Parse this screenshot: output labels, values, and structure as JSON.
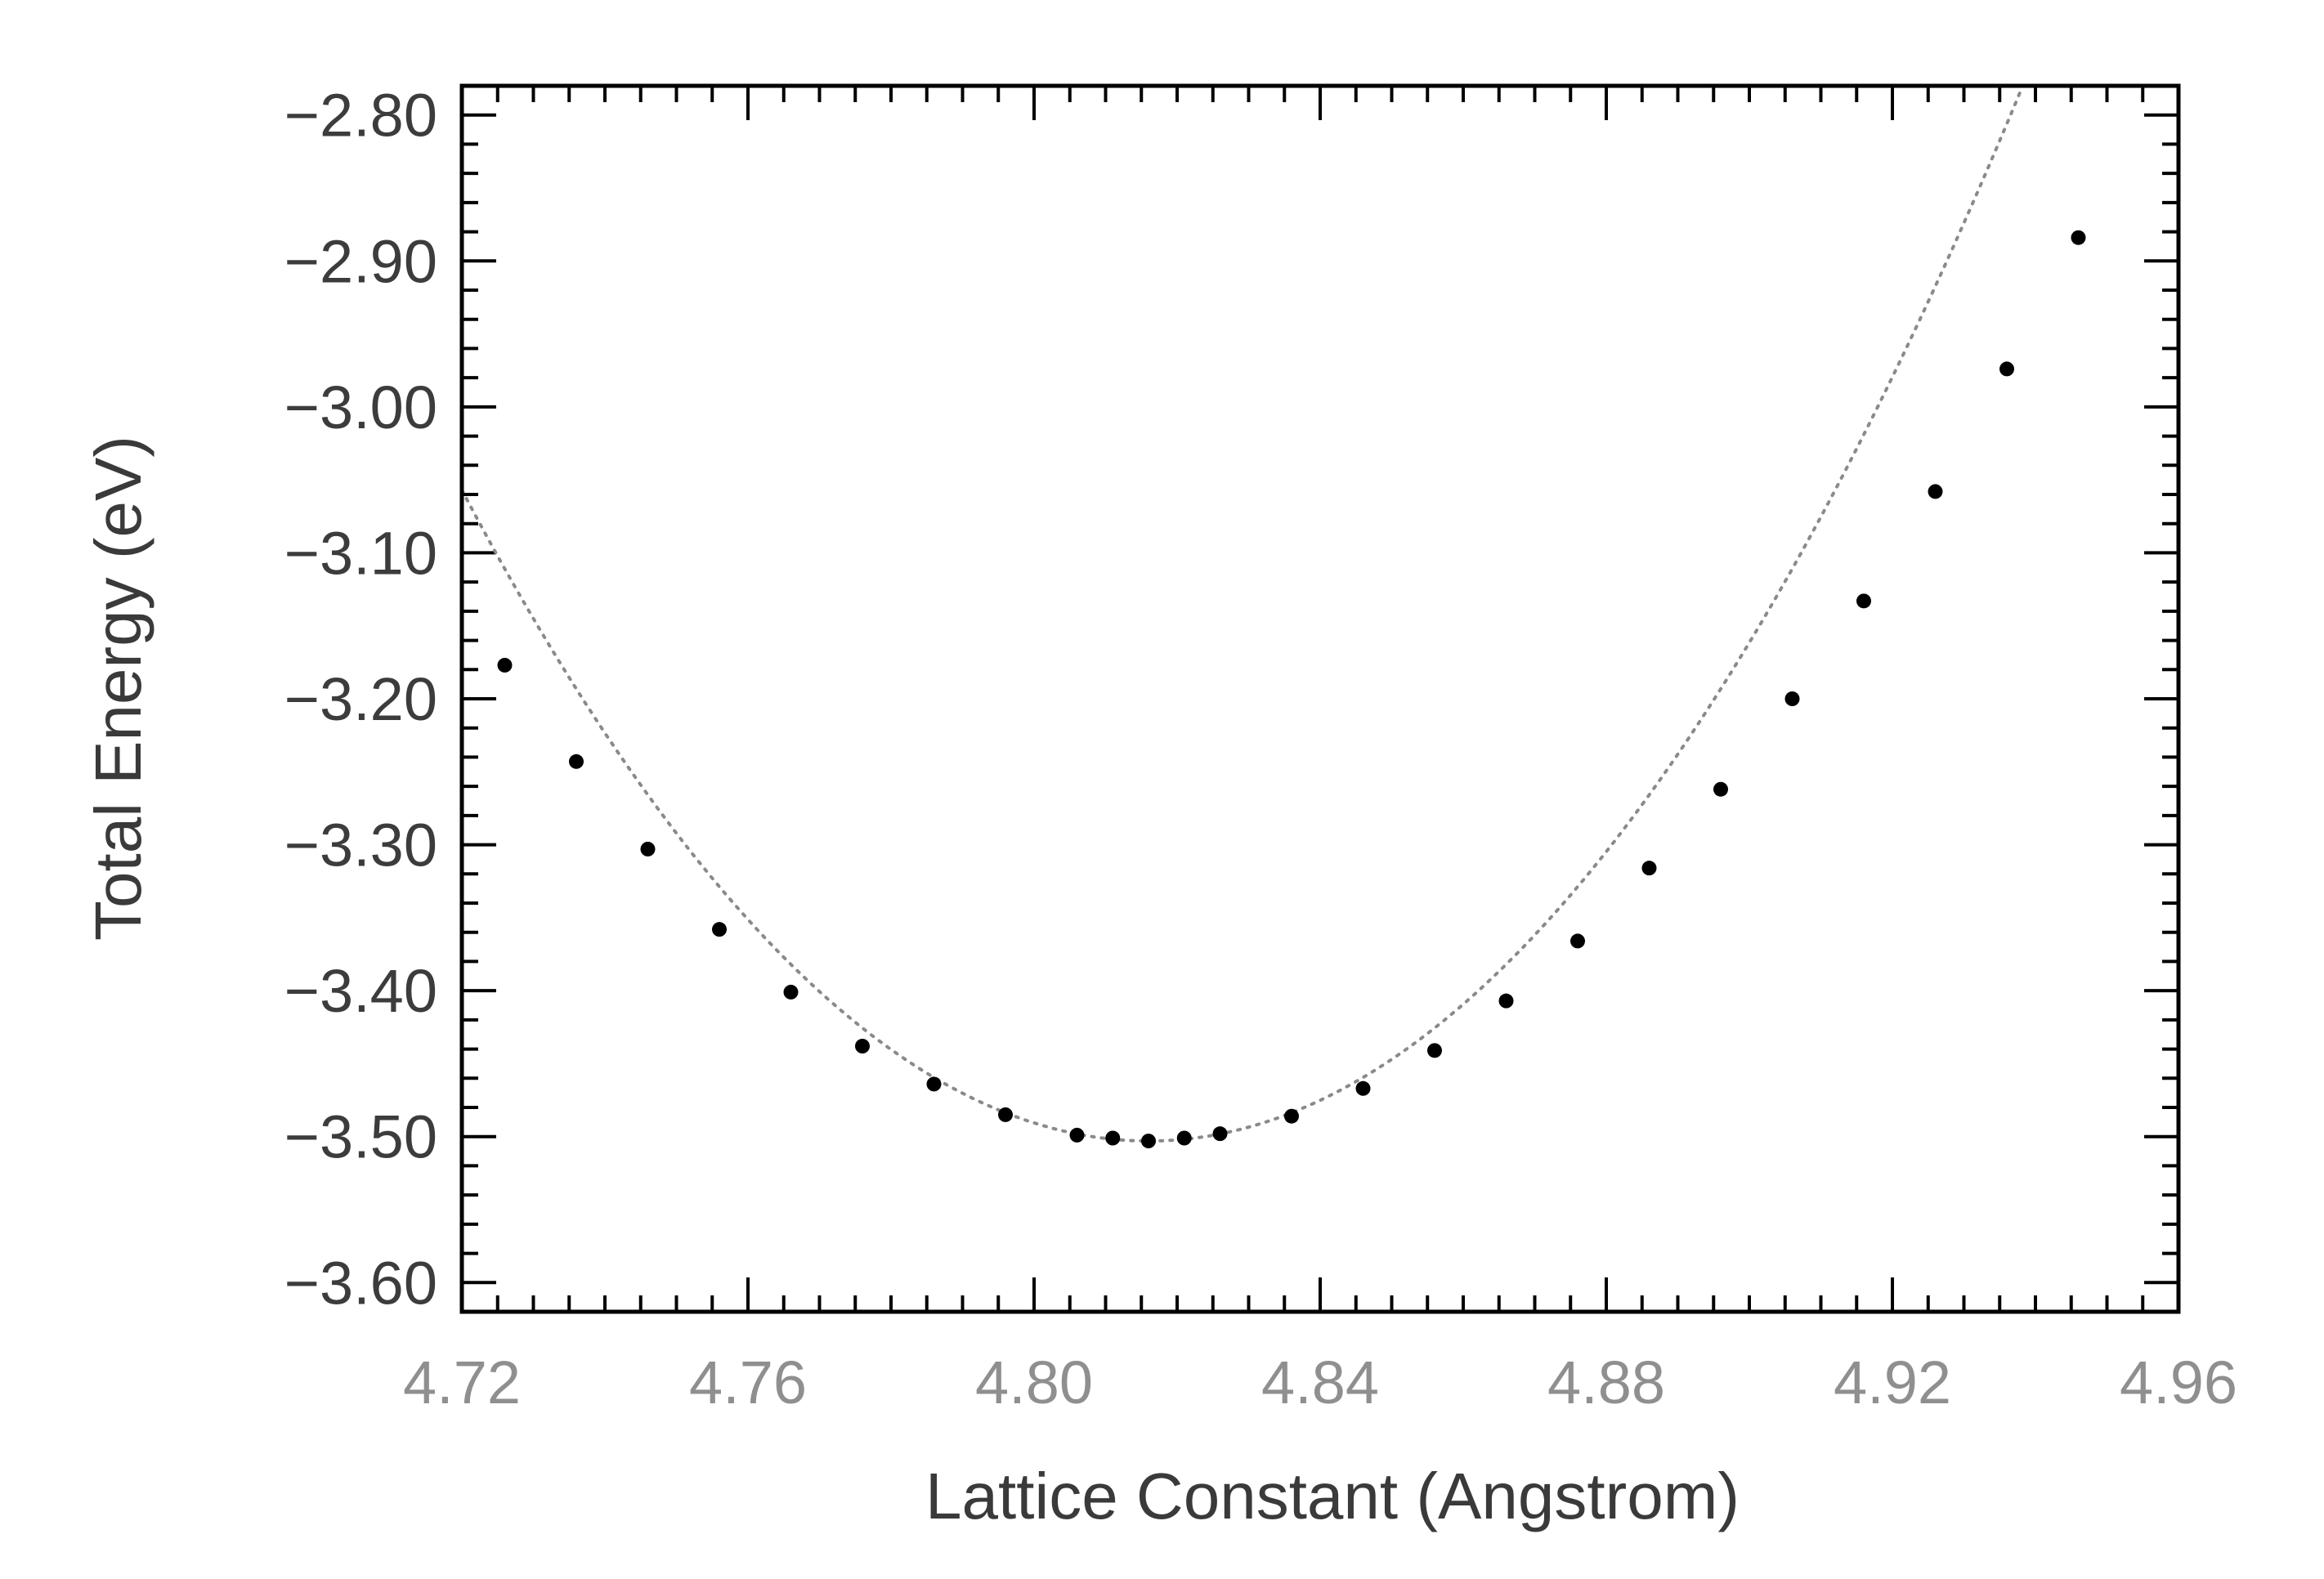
{
  "chart_data": {
    "type": "scatter",
    "title": "",
    "xlabel": "Lattice Constant (Angstrom)",
    "ylabel": "Total Energy (eV)",
    "xlim": [
      4.72,
      4.96
    ],
    "ylim": [
      -3.62,
      -2.78
    ],
    "x_ticks": [
      4.72,
      4.76,
      4.8,
      4.84,
      4.88,
      4.92,
      4.96
    ],
    "x_tick_labels": [
      "4.72",
      "4.76",
      "4.80",
      "4.84",
      "4.88",
      "4.92",
      "4.96"
    ],
    "y_ticks": [
      -3.6,
      -3.5,
      -3.4,
      -3.3,
      -3.2,
      -3.1,
      -3.0,
      -2.9,
      -2.8
    ],
    "y_tick_labels": [
      "−3.60",
      "−3.50",
      "−3.40",
      "−3.30",
      "−3.20",
      "−3.10",
      "−3.00",
      "−2.90",
      "−2.80"
    ],
    "grid": false,
    "points": {
      "x": [
        4.726,
        4.736,
        4.746,
        4.756,
        4.766,
        4.776,
        4.786,
        4.796,
        4.806,
        4.811,
        4.816,
        4.821,
        4.826,
        4.836,
        4.846,
        4.856,
        4.866,
        4.876,
        4.886,
        4.896,
        4.906,
        4.916,
        4.926,
        4.936,
        4.946
      ],
      "y": [
        -3.177,
        -3.243,
        -3.303,
        -3.358,
        -3.401,
        -3.438,
        -3.464,
        -3.485,
        -3.499,
        -3.501,
        -3.503,
        -3.501,
        -3.498,
        -3.486,
        -3.467,
        -3.441,
        -3.407,
        -3.366,
        -3.316,
        -3.262,
        -3.2,
        -3.133,
        -3.058,
        -2.974,
        -2.884
      ]
    },
    "fit_curve": {
      "style": "dotted",
      "vertex_x": 4.816,
      "vertex_y": -3.503,
      "coefficient": 48.4
    },
    "colors": {
      "points": "#000000",
      "fit_curve": "#8a8a8a",
      "frame": "#000000"
    }
  }
}
